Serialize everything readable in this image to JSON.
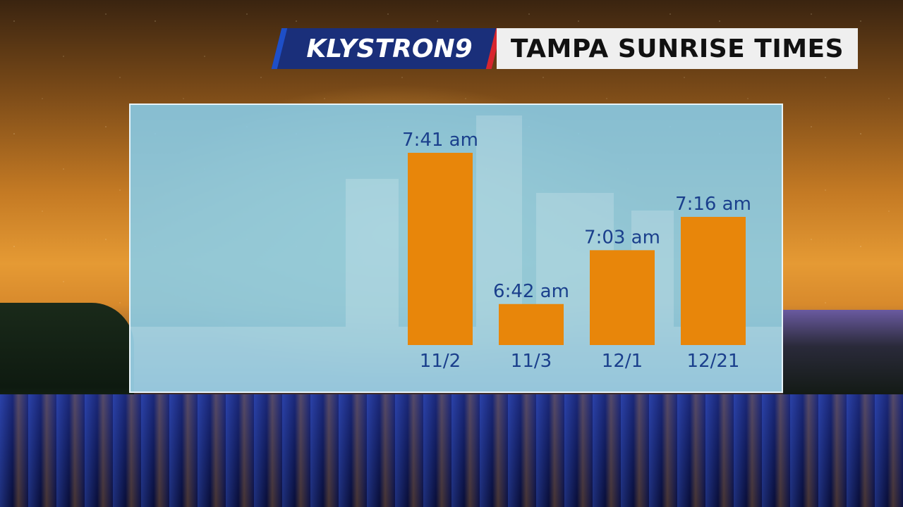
{
  "header": {
    "brand": "KLYSTRON9",
    "title": "TAMPA SUNRISE TIMES"
  },
  "colors": {
    "bar": "#e8860a",
    "label": "#1a3f8c",
    "panel": "#87cdeb",
    "brand_bg": "#1a2f7a",
    "brand_accent_red": "#d8262e",
    "brand_accent_blue": "#1e4fc8"
  },
  "icons": [
    "sun-icon"
  ],
  "chart_data": {
    "type": "bar",
    "title": "TAMPA SUNRISE TIMES",
    "xlabel": "",
    "ylabel": "",
    "categories": [
      "11/2",
      "11/3",
      "12/1",
      "12/21"
    ],
    "values": [
      "7:41",
      "6:42",
      "7:03",
      "7:16"
    ],
    "data_labels": [
      "7:41 am",
      "6:42 am",
      "7:03 am",
      "7:16 am"
    ],
    "ylim": [
      "6:26",
      "7:41"
    ],
    "grid": false,
    "legend": "none"
  }
}
